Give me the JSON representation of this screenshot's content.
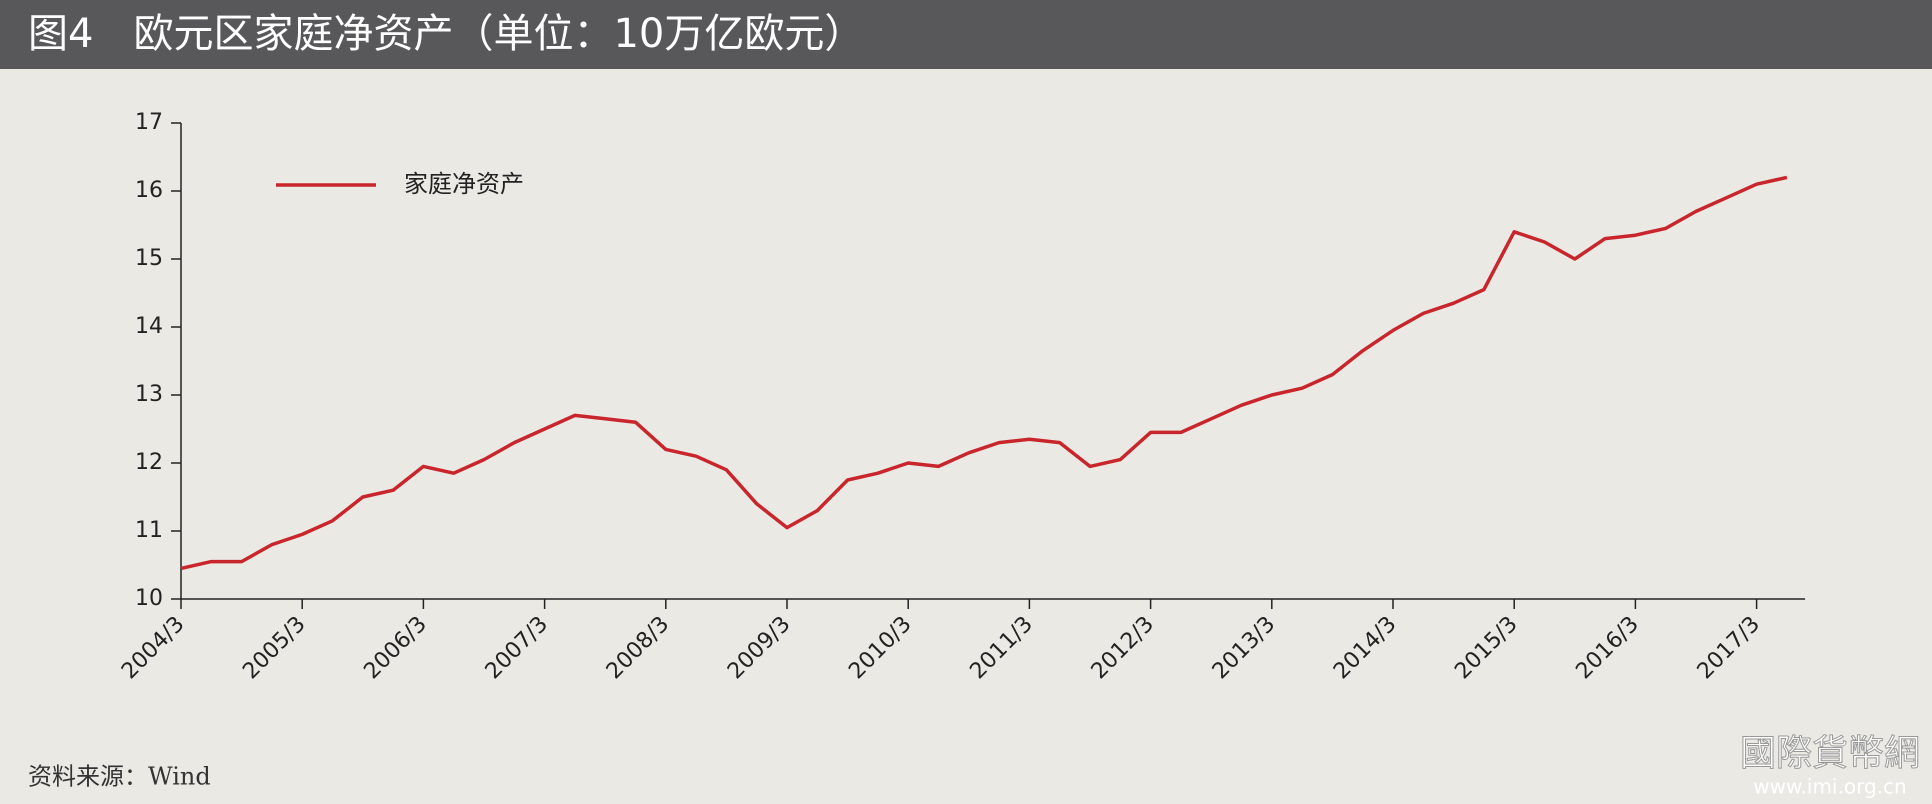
{
  "chart_data": {
    "type": "line",
    "title": "图4　欧元区家庭净资产（单位：10万亿欧元）",
    "source": "资料来源：Wind",
    "watermark": "國際貨幣網",
    "watermark_url": "www.imi.org.cn",
    "categories": [
      "2004/3",
      null,
      null,
      null,
      "2005/3",
      null,
      null,
      null,
      "2006/3",
      null,
      null,
      null,
      "2007/3",
      null,
      null,
      null,
      "2008/3",
      null,
      null,
      null,
      "2009/3",
      null,
      null,
      null,
      "2010/3",
      null,
      null,
      null,
      "2011/3",
      null,
      null,
      null,
      "2012/3",
      null,
      null,
      null,
      "2013/3",
      null,
      null,
      null,
      "2014/3",
      null,
      null,
      null,
      "2015/3",
      null,
      null,
      null,
      "2016/3",
      null,
      null,
      null,
      "2017/3",
      null
    ],
    "series": [
      {
        "name": "家庭净资产",
        "color": "#c8262c",
        "values": [
          10.45,
          10.55,
          10.55,
          10.8,
          10.95,
          11.15,
          11.5,
          11.6,
          11.95,
          11.85,
          12.05,
          12.3,
          12.5,
          12.7,
          12.65,
          12.6,
          12.2,
          12.1,
          11.9,
          11.4,
          11.05,
          11.3,
          11.75,
          11.85,
          12.0,
          11.95,
          12.15,
          12.3,
          12.35,
          12.3,
          11.95,
          12.05,
          12.45,
          12.45,
          12.65,
          12.85,
          13.0,
          13.1,
          13.3,
          13.65,
          13.95,
          14.2,
          14.35,
          14.55,
          15.4,
          15.25,
          15.0,
          15.3,
          15.35,
          15.45,
          15.7,
          15.9,
          16.1,
          16.2
        ]
      }
    ],
    "ylim": [
      10,
      17
    ],
    "yticks": [
      10,
      11,
      12,
      13,
      14,
      15,
      16,
      17
    ],
    "legend": "upper left"
  }
}
